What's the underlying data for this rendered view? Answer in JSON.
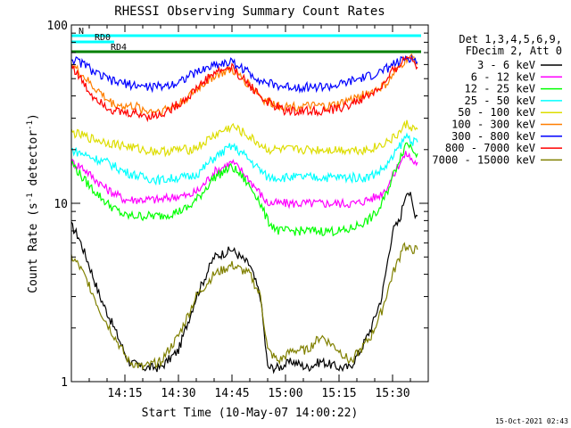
{
  "chart_data": {
    "type": "line",
    "title": "RHESSI Observing Summary Count Rates",
    "xlabel": "Start Time (10-May-07 14:00:22)",
    "ylabel": "Count Rate (s",
    "ylabel_exp": "-1",
    "ylabel_tail": " detector",
    "ylabel_end": ")",
    "yscale": "log",
    "ylim": [
      1,
      100
    ],
    "xlim_minutes": [
      0,
      100
    ],
    "x_ticks": [
      {
        "minute": 15,
        "label": "14:15"
      },
      {
        "minute": 30,
        "label": "14:30"
      },
      {
        "minute": 45,
        "label": "14:45"
      },
      {
        "minute": 60,
        "label": "15:00"
      },
      {
        "minute": 75,
        "label": "15:15"
      },
      {
        "minute": 90,
        "label": "15:30"
      }
    ],
    "y_ticks": [
      {
        "value": 1,
        "label": "1"
      },
      {
        "value": 10,
        "label": "10"
      },
      {
        "value": 100,
        "label": "100"
      }
    ],
    "legend": {
      "position": "right",
      "header": [
        "Det 1,3,4,5,6,9,",
        "FDecim 2, Att 0"
      ]
    },
    "footer_timestamp": "15-Oct-2021 02:43",
    "flags": [
      {
        "label": "N",
        "start": 0,
        "end": 98,
        "color": "#00ffff"
      },
      {
        "label": "RD0",
        "start": 0,
        "end": 12,
        "color": "#00ffff"
      },
      {
        "label": "RD4",
        "start": 0,
        "end": 98,
        "color": "#008000"
      }
    ],
    "series": [
      {
        "name": "3 - 6 keV",
        "color": "#000000",
        "x": [
          0,
          2,
          5,
          8,
          12,
          16,
          20,
          25,
          30,
          35,
          40,
          45,
          50,
          53,
          55,
          58,
          62,
          66,
          70,
          75,
          78,
          81,
          84,
          87,
          90,
          92,
          93,
          94,
          95,
          96,
          97
        ],
        "y": [
          7.5,
          6.5,
          4.5,
          3,
          2,
          1.3,
          1.2,
          1.2,
          1.5,
          3,
          5,
          5.5,
          4.5,
          3,
          1.2,
          1.2,
          1.3,
          1.2,
          1.3,
          1.2,
          1.2,
          1.5,
          2,
          3,
          7,
          8,
          10,
          12,
          11,
          9,
          8.5
        ]
      },
      {
        "name": "6 - 12 keV",
        "color": "#ff00ff",
        "x": [
          0,
          3,
          6,
          10,
          15,
          20,
          25,
          30,
          33,
          36,
          40,
          45,
          48,
          52,
          55,
          58,
          62,
          66,
          70,
          74,
          77,
          80,
          83,
          86,
          88,
          90,
          92,
          94,
          96,
          97
        ],
        "y": [
          17,
          16,
          14,
          12,
          10.5,
          10.5,
          10.5,
          11,
          11,
          12,
          15,
          17,
          15,
          12,
          10,
          10,
          10,
          10,
          10,
          10,
          10,
          10,
          10.5,
          11,
          12,
          14,
          17,
          19,
          17,
          17
        ]
      },
      {
        "name": "12 - 25 keV",
        "color": "#00ff00",
        "x": [
          0,
          3,
          6,
          10,
          15,
          20,
          25,
          30,
          33,
          36,
          40,
          45,
          48,
          52,
          55,
          58,
          62,
          66,
          70,
          74,
          77,
          80,
          83,
          86,
          88,
          90,
          92,
          94,
          96,
          97
        ],
        "y": [
          17,
          14,
          12,
          10,
          8.5,
          8.5,
          8.5,
          9,
          9.5,
          11,
          14,
          16,
          14,
          11,
          8,
          7,
          7,
          7,
          7,
          7,
          7,
          7.5,
          8,
          9,
          11,
          14,
          18,
          22,
          20,
          19
        ]
      },
      {
        "name": "25 - 50 keV",
        "color": "#00ffff",
        "x": [
          0,
          3,
          6,
          10,
          15,
          20,
          25,
          30,
          33,
          36,
          40,
          45,
          48,
          52,
          55,
          58,
          62,
          66,
          70,
          74,
          77,
          80,
          83,
          86,
          88,
          90,
          92,
          94,
          96,
          97
        ],
        "y": [
          20,
          19,
          18,
          17,
          15,
          14,
          13.5,
          14,
          14,
          15,
          18,
          21,
          19,
          16,
          14,
          14,
          14,
          14,
          14,
          14,
          14,
          14,
          14,
          15,
          16,
          18,
          21,
          24,
          22,
          22
        ]
      },
      {
        "name": "50 - 100 keV",
        "color": "#dddd00",
        "x": [
          0,
          3,
          6,
          10,
          15,
          20,
          25,
          30,
          33,
          36,
          40,
          45,
          48,
          52,
          55,
          58,
          62,
          66,
          70,
          74,
          77,
          80,
          83,
          86,
          88,
          90,
          92,
          94,
          96,
          97
        ],
        "y": [
          25,
          24,
          23,
          22,
          21,
          20,
          19.5,
          20,
          20,
          21,
          24,
          27,
          25,
          22,
          20,
          20,
          20,
          20,
          20,
          20,
          20,
          20,
          20,
          21,
          22,
          23,
          25,
          28,
          26,
          26
        ]
      },
      {
        "name": "100 - 300 keV",
        "color": "#ff7f00",
        "x": [
          0,
          2,
          4,
          6,
          8,
          10,
          12,
          15,
          18,
          21,
          24,
          27,
          30,
          33,
          36,
          40,
          45,
          48,
          51,
          54,
          57,
          60,
          64,
          68,
          72,
          75,
          78,
          81,
          84,
          87,
          89,
          90,
          92,
          94,
          96,
          97
        ],
        "y": [
          60,
          55,
          50,
          45,
          42,
          38,
          36,
          35,
          35,
          33,
          33,
          34,
          36,
          40,
          45,
          52,
          56,
          50,
          44,
          38,
          36,
          35,
          35,
          35,
          35,
          36,
          38,
          40,
          42,
          45,
          48,
          52,
          58,
          65,
          65,
          60
        ]
      },
      {
        "name": "300 - 800 keV",
        "color": "#0000ff",
        "x": [
          0,
          2,
          4,
          6,
          8,
          10,
          12,
          15,
          18,
          21,
          24,
          27,
          30,
          33,
          36,
          40,
          45,
          48,
          51,
          54,
          57,
          60,
          64,
          68,
          72,
          75,
          78,
          81,
          84,
          87,
          89,
          90,
          92,
          94,
          96,
          97
        ],
        "y": [
          65,
          62,
          60,
          55,
          52,
          50,
          48,
          47,
          46,
          45,
          45,
          46,
          48,
          52,
          55,
          60,
          62,
          57,
          52,
          48,
          46,
          45,
          45,
          45,
          45,
          46,
          48,
          50,
          52,
          55,
          58,
          60,
          62,
          66,
          64,
          62
        ]
      },
      {
        "name": "800 - 7000 keV",
        "color": "#ff0000",
        "x": [
          0,
          2,
          4,
          6,
          8,
          10,
          12,
          15,
          18,
          21,
          24,
          27,
          30,
          33,
          36,
          40,
          45,
          48,
          51,
          54,
          57,
          60,
          64,
          68,
          72,
          75,
          78,
          81,
          84,
          87,
          89,
          90,
          92,
          94,
          96,
          97
        ],
        "y": [
          60,
          52,
          45,
          40,
          38,
          35,
          33,
          32,
          32,
          31,
          31,
          33,
          36,
          40,
          46,
          54,
          58,
          50,
          44,
          38,
          35,
          33,
          33,
          33,
          33,
          34,
          36,
          38,
          41,
          45,
          50,
          55,
          60,
          66,
          64,
          58
        ]
      },
      {
        "name": "7000 - 15000 keV",
        "color": "#808000",
        "x": [
          0,
          2,
          5,
          8,
          12,
          16,
          20,
          25,
          30,
          35,
          40,
          45,
          50,
          53,
          55,
          58,
          62,
          66,
          70,
          75,
          78,
          81,
          84,
          87,
          90,
          92,
          93,
          94,
          95,
          96,
          97
        ],
        "y": [
          5,
          4.5,
          3.5,
          2.5,
          1.8,
          1.3,
          1.2,
          1.3,
          1.8,
          3,
          4,
          4.5,
          4,
          3,
          1.5,
          1.3,
          1.5,
          1.5,
          1.8,
          1.5,
          1.3,
          1.5,
          1.8,
          2.5,
          4,
          5,
          6,
          5.5,
          5.5,
          5.5,
          5.5
        ]
      }
    ]
  }
}
